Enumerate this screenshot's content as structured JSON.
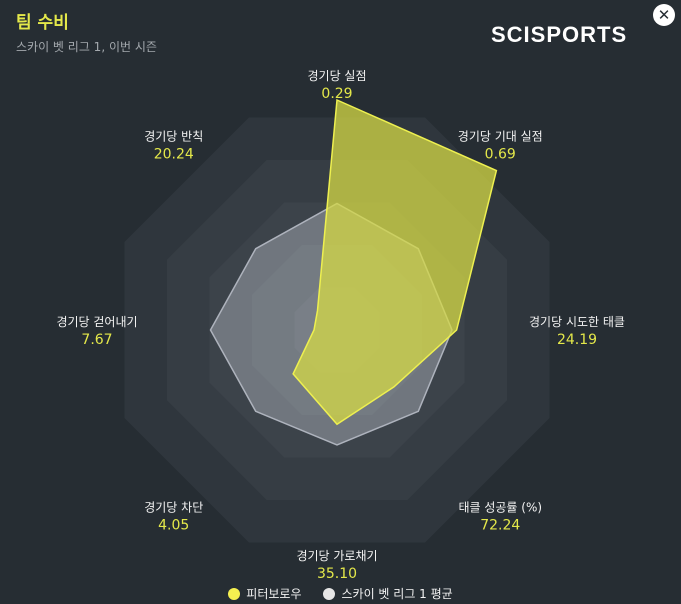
{
  "header": {
    "title": "팀 수비",
    "subtitle": "스카이 벳 리그 1, 이번 시즌",
    "logo_text": "SCISPORTS",
    "close_glyph": "✕"
  },
  "colors": {
    "accent": "#e4e84a",
    "team_fill": "#cfd34a",
    "league_fill": "#c8ccd6",
    "background": "#262d33"
  },
  "chart_data": {
    "type": "radar",
    "title": "팀 수비",
    "subtitle": "스카이 벳 리그 1, 이번 시즌",
    "axes": [
      {
        "label": "경기당 실점",
        "value": "0.29"
      },
      {
        "label": "경기당 기대 실점",
        "value": "0.69"
      },
      {
        "label": "경기당 시도한 태클",
        "value": "24.19"
      },
      {
        "label": "태클 성공률 (%)",
        "value": "72.24"
      },
      {
        "label": "경기당 가로채기",
        "value": "35.10"
      },
      {
        "label": "경기당 차단",
        "value": "4.05"
      },
      {
        "label": "경기당 걷어내기",
        "value": "7.67"
      },
      {
        "label": "경기당 반칙",
        "value": "20.24"
      }
    ],
    "series": [
      {
        "name": "피터보로우",
        "percentile": [
          1.0,
          0.98,
          0.52,
          0.35,
          0.41,
          0.27,
          0.1,
          0.12
        ]
      },
      {
        "name": "스카이 벳 리그 1 평균",
        "percentile": [
          0.55,
          0.5,
          0.5,
          0.5,
          0.5,
          0.5,
          0.55,
          0.5
        ]
      }
    ],
    "rings": 5,
    "legend_position": "bottom"
  },
  "legend": {
    "team": "피터보로우",
    "league": "스카이 벳 리그 1 평균"
  }
}
